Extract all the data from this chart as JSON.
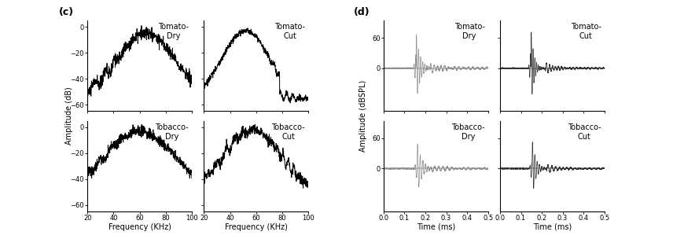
{
  "panel_c_label": "(c)",
  "panel_d_label": "(d)",
  "freq_xlim": [
    20,
    100
  ],
  "freq_xticks": [
    20,
    40,
    60,
    80,
    100
  ],
  "freq_xlabel": "Frequency (KHz)",
  "freq_ylabel": "Amplitude (dB)",
  "freq_ylim": [
    -65,
    5
  ],
  "freq_yticks": [
    0,
    -20,
    -40,
    -60
  ],
  "time_xlim": [
    0,
    0.5
  ],
  "time_xticks": [
    0,
    0.1,
    0.2,
    0.3,
    0.4,
    0.5
  ],
  "time_xlabel": "Time (ms)",
  "time_ylabel": "Amplitude (dBSPL)",
  "time_ylim": [
    -85,
    95
  ],
  "time_yticks": [
    0,
    60
  ],
  "subplot_titles": {
    "tomato_dry": "Tomato-\nDry",
    "tomato_cut": "Tomato-\nCut",
    "tobacco_dry": "Tobacco-\nDry",
    "tobacco_cut": "Tobacco-\nCut"
  },
  "line_color_freq": "#000000",
  "line_color_dry": "#909090",
  "line_color_cut": "#303030",
  "background_color": "#ffffff",
  "font_size_tick": 6,
  "font_size_title": 7,
  "font_size_label": 7,
  "font_size_panel": 9
}
